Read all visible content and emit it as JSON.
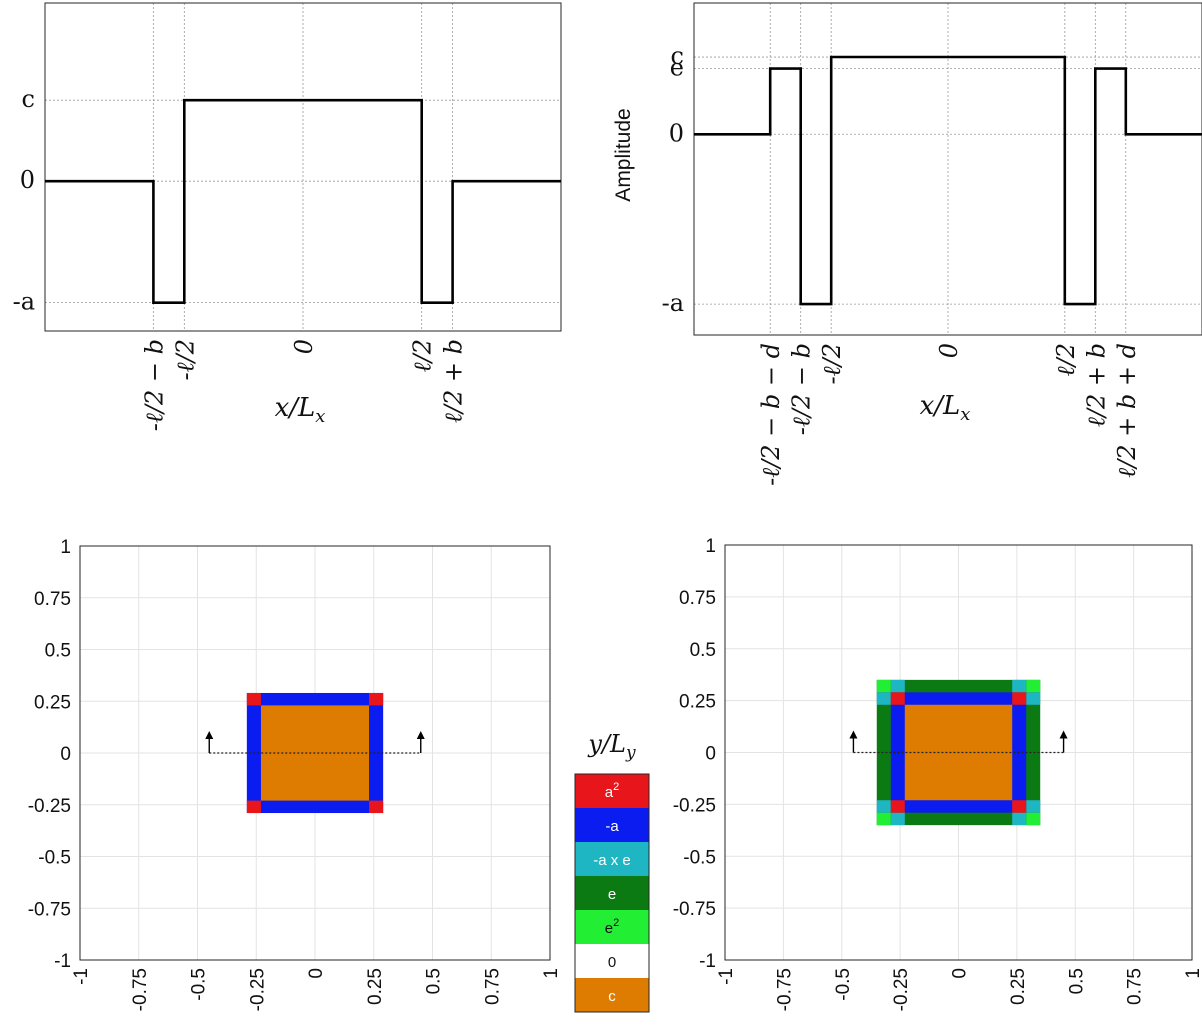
{
  "chart_data": [
    {
      "type": "line",
      "panel": "top-left",
      "xlabel": "x/L_x",
      "ylabel": "",
      "ytick_labels": [
        "c",
        "0",
        "-a"
      ],
      "ytick_levels": {
        "c": 1.0,
        "0": 0.0,
        "-a": -1.5
      },
      "xtick_labels": [
        "-ℓ/2 − b",
        "-ℓ/2",
        "0",
        "ℓ/2",
        "ℓ/2 + b"
      ],
      "xtick_positions": [
        -0.29,
        -0.23,
        0.0,
        0.23,
        0.29
      ],
      "xlim": [
        -0.5,
        0.5
      ],
      "ylim": [
        -1.85,
        2.2
      ],
      "series": [
        {
          "x": [
            -0.5,
            -0.29,
            -0.29,
            -0.23,
            -0.23,
            0.23,
            0.23,
            0.29,
            0.29,
            0.5
          ],
          "y": [
            0,
            0,
            -1.5,
            -1.5,
            1.0,
            1.0,
            -1.5,
            -1.5,
            0,
            0
          ]
        }
      ],
      "grid": "dotted at ticks"
    },
    {
      "type": "line",
      "panel": "top-right",
      "xlabel": "x/L_x",
      "ylabel": "Amplitude",
      "ytick_labels": [
        "c",
        "e",
        "0",
        "-a"
      ],
      "ytick_levels": {
        "c": 1.0,
        "e": 0.85,
        "0": 0.0,
        "-a": -2.2
      },
      "xtick_labels": [
        "-ℓ/2 − b − d",
        "-ℓ/2 − b",
        "-ℓ/2",
        "0",
        "ℓ/2",
        "ℓ/2 + b",
        "ℓ/2 + b + d"
      ],
      "xtick_positions": [
        -0.35,
        -0.29,
        -0.23,
        0.0,
        0.23,
        0.29,
        0.35
      ],
      "xlim": [
        -0.5,
        0.5
      ],
      "ylim": [
        -2.6,
        1.7
      ],
      "series": [
        {
          "x": [
            -0.5,
            -0.35,
            -0.35,
            -0.29,
            -0.29,
            -0.23,
            -0.23,
            0.23,
            0.23,
            0.29,
            0.29,
            0.35,
            0.35,
            0.5
          ],
          "y": [
            0,
            0,
            0.85,
            0.85,
            -2.2,
            -2.2,
            1.0,
            1.0,
            -2.2,
            -2.2,
            0.85,
            0.85,
            0,
            0
          ]
        }
      ],
      "grid": "dotted at ticks"
    },
    {
      "type": "heatmap",
      "panel": "bottom-left",
      "xlim": [
        -1,
        1
      ],
      "ylim": [
        -1,
        1
      ],
      "xticks": [
        "-1",
        "-0.75",
        "-0.5",
        "-0.25",
        "0",
        "0.25",
        "0.5",
        "0.75",
        "1"
      ],
      "yticks": [
        "1",
        "0.75",
        "0.5",
        "0.25",
        "0",
        "-0.25",
        "-0.5",
        "-0.75",
        "-1"
      ],
      "regions": [
        {
          "value": "-a",
          "xrange": [
            -0.29,
            0.29
          ],
          "yrange": [
            -0.29,
            0.29
          ]
        },
        {
          "value": "c",
          "xrange": [
            -0.23,
            0.23
          ],
          "yrange": [
            -0.23,
            0.23
          ]
        },
        {
          "value": "a²",
          "corners": true,
          "xrange": [
            -0.29,
            0.29
          ],
          "yrange": [
            -0.29,
            0.29
          ],
          "size": 0.06
        }
      ],
      "cut_line": {
        "y": 0,
        "x": [
          -0.45,
          0.45
        ]
      },
      "grid": "on"
    },
    {
      "type": "heatmap",
      "panel": "bottom-right",
      "ylabel": "y/L_y",
      "xlim": [
        -1,
        1
      ],
      "ylim": [
        -1,
        1
      ],
      "xticks": [
        "-1",
        "-0.75",
        "-0.5",
        "-0.25",
        "0",
        "0.25",
        "0.5",
        "0.75",
        "1"
      ],
      "yticks": [
        "1",
        "0.75",
        "0.5",
        "0.25",
        "0",
        "-0.25",
        "-0.5",
        "-0.75",
        "-1"
      ],
      "regions": [
        {
          "value": "e",
          "xrange": [
            -0.35,
            0.35
          ],
          "yrange": [
            -0.35,
            0.35
          ]
        },
        {
          "value": "-a",
          "xrange": [
            -0.29,
            0.29
          ],
          "yrange": [
            -0.29,
            0.29
          ]
        },
        {
          "value": "c",
          "xrange": [
            -0.23,
            0.23
          ],
          "yrange": [
            -0.23,
            0.23
          ]
        }
      ],
      "cut_line": {
        "y": 0,
        "x": [
          -0.45,
          0.45
        ]
      },
      "grid": "on"
    }
  ],
  "legend": {
    "title": "y/L_y",
    "entries": [
      {
        "label": "a",
        "sup": "2",
        "color": "#e8161b"
      },
      {
        "label": "-a",
        "sup": "",
        "color": "#0a1cf0"
      },
      {
        "label": "-a x e",
        "sup": "",
        "color": "#1fb6c3"
      },
      {
        "label": "e",
        "sup": "",
        "color": "#0c7a12"
      },
      {
        "label": "e",
        "sup": "2",
        "color": "#22ee33"
      },
      {
        "label": "0",
        "sup": "",
        "color": "#ffffff"
      },
      {
        "label": "c",
        "sup": "",
        "color": "#de7c02"
      }
    ]
  },
  "colors": {
    "a2": "#e8161b",
    "neg_a": "#0a1cf0",
    "neg_a_e": "#1fb6c3",
    "e": "#0c7a12",
    "e2": "#22ee33",
    "zero": "#ffffff",
    "c": "#de7c02"
  }
}
